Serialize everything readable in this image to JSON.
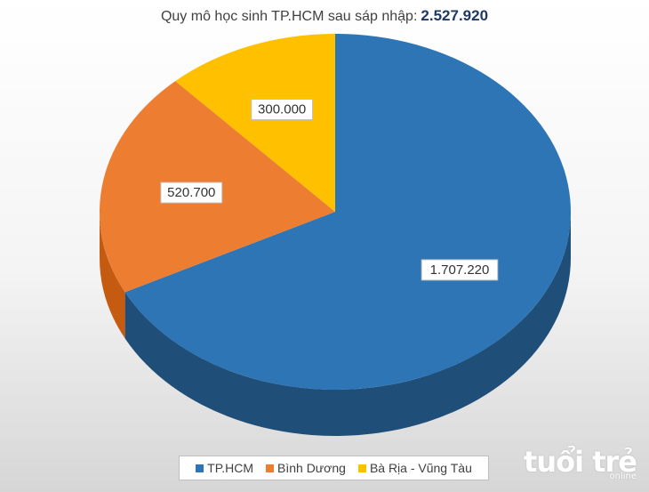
{
  "title": {
    "text": "Quy mô học sinh TP.HCM sau sáp nhập:",
    "total": "2.527.920"
  },
  "chart_data": {
    "type": "pie",
    "categories": [
      "TP.HCM",
      "Bình Dương",
      "Bà Rịa - Vũng Tàu"
    ],
    "values": [
      1707220,
      520700,
      300000
    ],
    "labels": [
      "1.707.220",
      "520.700",
      "300.000"
    ],
    "colors": [
      "#2E75B6",
      "#ED7D31",
      "#FFC000"
    ],
    "side_colors": [
      "#1F4E79",
      "#C55A11",
      "#BF9000"
    ],
    "legend_position": "bottom"
  },
  "legend": {
    "items": [
      "TP.HCM",
      "Bình Dương",
      "Bà Rịa - Vũng Tàu"
    ]
  },
  "watermark": {
    "text": "tuổi trẻ",
    "sub": "online"
  }
}
